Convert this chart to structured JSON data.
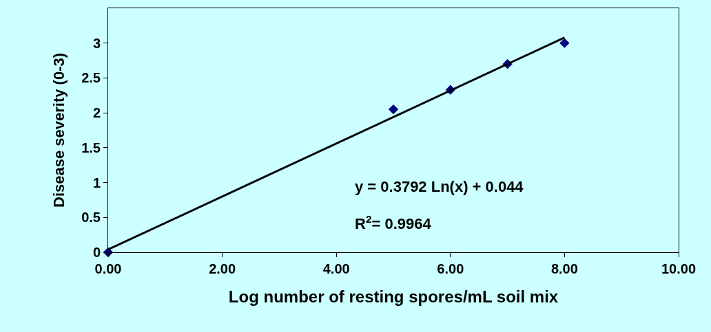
{
  "chart_data": {
    "type": "scatter",
    "xlabel": "Log number of resting spores/mL soil mix",
    "ylabel": "Disease severity (0-3)",
    "x": [
      0,
      5,
      6,
      7,
      8
    ],
    "series": [
      {
        "color": "#000080",
        "values": [
          0,
          2.05,
          2.33,
          2.7,
          3.0
        ],
        "marker": "diamond"
      },
      {
        "type": "line",
        "x": [
          0,
          8
        ],
        "color": "#000000",
        "values": [
          0.04,
          3.08
        ],
        "line_style": "solid",
        "marker": "none"
      }
    ],
    "xlim": [
      0,
      10
    ],
    "xticks": [
      {
        "value": 0,
        "label": "0.00"
      },
      {
        "value": 2,
        "label": "2.00"
      },
      {
        "value": 4,
        "label": "4.00"
      },
      {
        "value": 6,
        "label": "6.00"
      },
      {
        "value": 8,
        "label": "8.00"
      },
      {
        "value": 10,
        "label": "10.00"
      }
    ],
    "ylim": [
      0,
      3.5
    ],
    "yticks": [
      0,
      0.5,
      1,
      1.5,
      2,
      2.5,
      3
    ],
    "annotations": [
      "y = 0.3792 Ln(x) + 0.044",
      "R$^{2}$= 0.9964"
    ],
    "grid": false
  }
}
